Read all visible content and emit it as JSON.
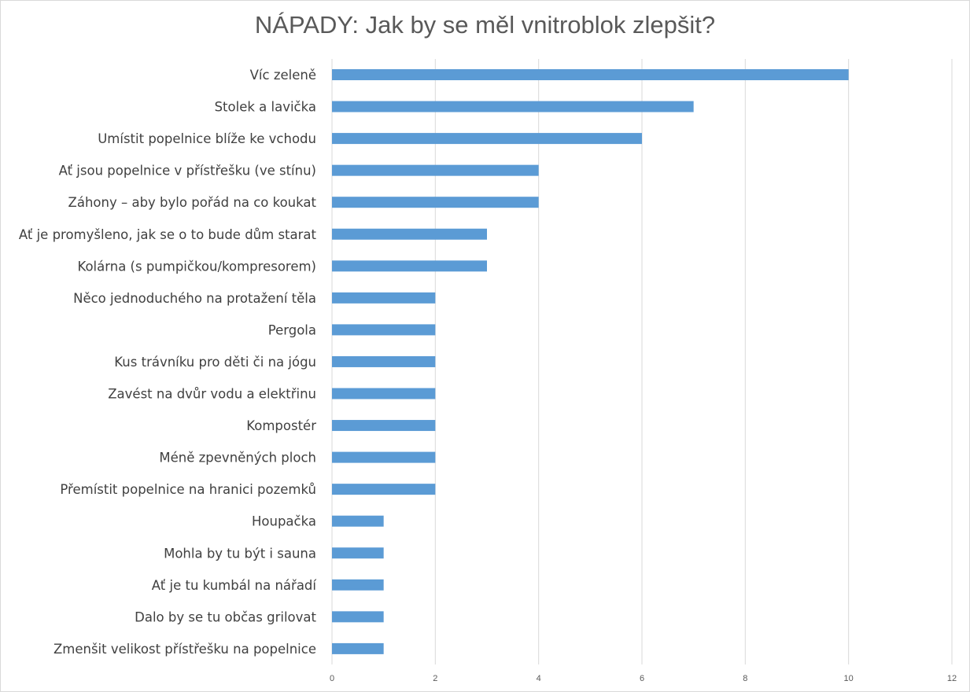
{
  "chart_data": {
    "type": "bar",
    "orientation": "horizontal",
    "title": "NÁPADY: Jak by se měl vnitroblok zlepšit?",
    "xlabel": "",
    "ylabel": "",
    "xlim": [
      0,
      12
    ],
    "x_ticks": [
      0,
      2,
      4,
      6,
      8,
      10,
      12
    ],
    "grid": "vertical",
    "bar_color": "#5b9bd5",
    "categories": [
      "Víc zeleně",
      "Stolek a lavička",
      "Umístit popelnice blíže ke vchodu",
      "Ať jsou popelnice v přístřešku (ve stínu)",
      "Záhony – aby bylo pořád na co koukat",
      "Ať je promyšleno, jak se o to bude dům starat",
      "Kolárna (s pumpičkou/kompresorem)",
      "Něco jednoduchého na protažení těla",
      "Pergola",
      "Kus trávníku pro děti či na jógu",
      "Zavést na dvůr vodu a elektřinu",
      "Kompostér",
      "Méně zpevněných ploch",
      "Přemístit popelnice na hranici pozemků",
      "Houpačka",
      "Mohla by tu být i sauna",
      "Ať je tu kumbál na nářadí",
      "Dalo by se tu občas grilovat",
      "Zmenšit velikost přístřešku na popelnice"
    ],
    "values": [
      10,
      7,
      6,
      4,
      4,
      3,
      3,
      2,
      2,
      2,
      2,
      2,
      2,
      2,
      1,
      1,
      1,
      1,
      1
    ]
  }
}
